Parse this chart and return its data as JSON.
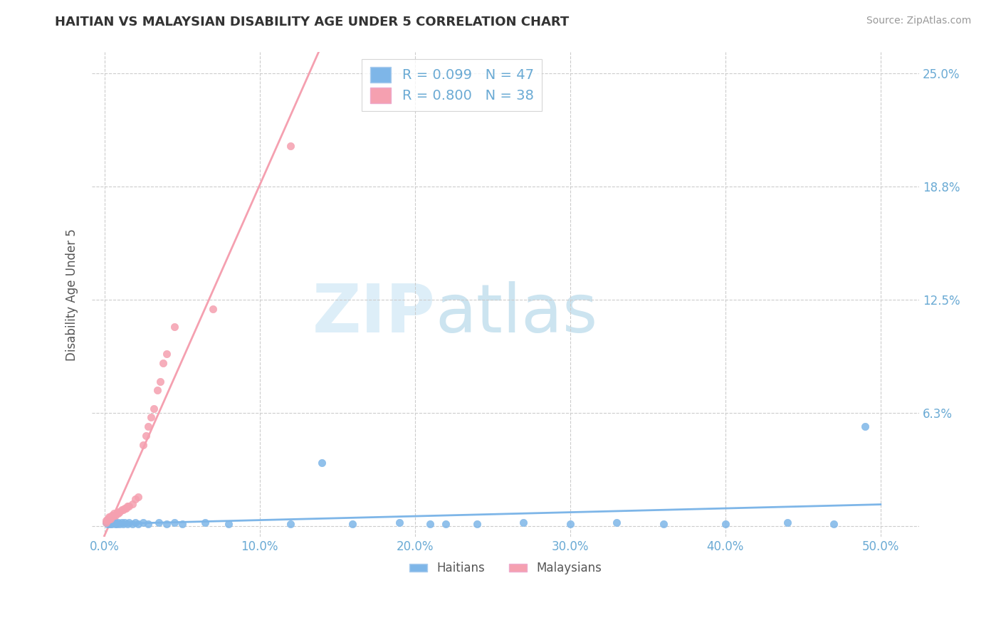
{
  "title": "HAITIAN VS MALAYSIAN DISABILITY AGE UNDER 5 CORRELATION CHART",
  "source": "Source: ZipAtlas.com",
  "ylabel": "Disability Age Under 5",
  "x_ticks": [
    0.0,
    0.1,
    0.2,
    0.3,
    0.4,
    0.5
  ],
  "x_tick_labels": [
    "0.0%",
    "10.0%",
    "20.0%",
    "30.0%",
    "40.0%",
    "50.0%"
  ],
  "y_ticks": [
    0.0,
    0.0625,
    0.125,
    0.1875,
    0.25
  ],
  "y_tick_labels": [
    "",
    "6.3%",
    "12.5%",
    "18.8%",
    "25.0%"
  ],
  "xlim": [
    -0.008,
    0.525
  ],
  "ylim": [
    -0.006,
    0.262
  ],
  "haitian_color": "#7EB6E8",
  "malaysian_color": "#F5A0B0",
  "haitian_R": 0.099,
  "haitian_N": 47,
  "malaysian_R": 0.8,
  "malaysian_N": 38,
  "grid_color": "#CCCCCC",
  "tick_color": "#6aaad4",
  "background_color": "#FFFFFF",
  "haitian_x": [
    0.001,
    0.002,
    0.002,
    0.003,
    0.003,
    0.004,
    0.004,
    0.005,
    0.005,
    0.006,
    0.006,
    0.007,
    0.007,
    0.008,
    0.009,
    0.01,
    0.011,
    0.012,
    0.013,
    0.015,
    0.016,
    0.018,
    0.02,
    0.022,
    0.025,
    0.028,
    0.035,
    0.04,
    0.045,
    0.05,
    0.065,
    0.08,
    0.12,
    0.14,
    0.16,
    0.19,
    0.21,
    0.22,
    0.24,
    0.27,
    0.3,
    0.33,
    0.36,
    0.4,
    0.44,
    0.47,
    0.49
  ],
  "haitian_y": [
    0.002,
    0.001,
    0.003,
    0.001,
    0.002,
    0.001,
    0.003,
    0.002,
    0.001,
    0.002,
    0.003,
    0.001,
    0.002,
    0.001,
    0.002,
    0.001,
    0.002,
    0.001,
    0.002,
    0.001,
    0.002,
    0.001,
    0.002,
    0.001,
    0.002,
    0.001,
    0.002,
    0.001,
    0.002,
    0.001,
    0.002,
    0.001,
    0.001,
    0.035,
    0.001,
    0.002,
    0.001,
    0.001,
    0.001,
    0.002,
    0.001,
    0.002,
    0.001,
    0.001,
    0.002,
    0.001,
    0.055
  ],
  "malaysian_x": [
    0.001,
    0.001,
    0.002,
    0.002,
    0.003,
    0.003,
    0.004,
    0.004,
    0.005,
    0.005,
    0.006,
    0.006,
    0.007,
    0.008,
    0.009,
    0.009,
    0.01,
    0.011,
    0.012,
    0.013,
    0.014,
    0.015,
    0.016,
    0.018,
    0.02,
    0.022,
    0.025,
    0.027,
    0.028,
    0.03,
    0.032,
    0.034,
    0.036,
    0.038,
    0.04,
    0.045,
    0.07,
    0.12
  ],
  "malaysian_y": [
    0.002,
    0.003,
    0.003,
    0.004,
    0.004,
    0.005,
    0.004,
    0.005,
    0.005,
    0.006,
    0.006,
    0.007,
    0.006,
    0.007,
    0.007,
    0.008,
    0.008,
    0.009,
    0.009,
    0.01,
    0.01,
    0.011,
    0.011,
    0.012,
    0.015,
    0.016,
    0.045,
    0.05,
    0.055,
    0.06,
    0.065,
    0.075,
    0.08,
    0.09,
    0.095,
    0.11,
    0.12,
    0.21
  ]
}
